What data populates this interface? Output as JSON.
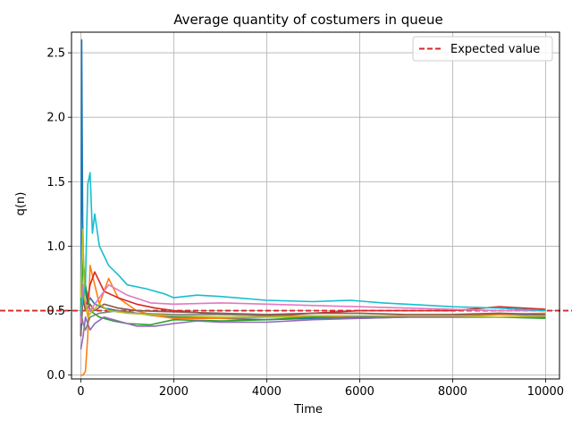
{
  "chart_data": {
    "type": "line",
    "title": "Average quantity of costumers in queue",
    "xlabel": "Time",
    "ylabel": "q(n)",
    "xlim": [
      -200,
      10300
    ],
    "ylim": [
      -0.03,
      2.66
    ],
    "x_ticks": [
      0,
      2000,
      4000,
      6000,
      8000,
      10000
    ],
    "y_ticks": [
      0.0,
      0.5,
      1.0,
      1.5,
      2.0,
      2.5
    ],
    "grid": true,
    "legend_position": "upper right",
    "reference_line": {
      "name": "Expected value",
      "y": 0.5,
      "color": "#d62728",
      "style": "dashed"
    },
    "series": [
      {
        "color": "#1f77b4",
        "x": [
          0,
          20,
          40,
          60,
          100,
          150,
          200,
          300,
          500,
          800,
          1200,
          1600,
          2000,
          3000,
          4000,
          5000,
          6000,
          7000,
          8000,
          9000,
          10000
        ],
        "y": [
          0.3,
          2.6,
          1.2,
          0.85,
          0.65,
          0.55,
          0.6,
          0.55,
          0.52,
          0.5,
          0.48,
          0.46,
          0.45,
          0.44,
          0.43,
          0.44,
          0.45,
          0.45,
          0.46,
          0.47,
          0.47
        ]
      },
      {
        "color": "#ff7f0e",
        "x": [
          0,
          50,
          100,
          150,
          200,
          300,
          400,
          600,
          800,
          1200,
          1600,
          2000,
          3000,
          4000,
          5000,
          6000,
          7000,
          8000,
          9000,
          10000
        ],
        "y": [
          0.0,
          0.0,
          0.03,
          0.3,
          0.85,
          0.7,
          0.55,
          0.75,
          0.6,
          0.5,
          0.46,
          0.44,
          0.44,
          0.45,
          0.45,
          0.46,
          0.46,
          0.47,
          0.47,
          0.48
        ]
      },
      {
        "color": "#2ca02c",
        "x": [
          0,
          50,
          100,
          200,
          400,
          700,
          1000,
          1500,
          2000,
          3000,
          4000,
          5000,
          6000,
          7000,
          8000,
          9000,
          10000
        ],
        "y": [
          0.5,
          0.9,
          0.7,
          0.5,
          0.45,
          0.42,
          0.4,
          0.39,
          0.43,
          0.42,
          0.43,
          0.45,
          0.44,
          0.45,
          0.45,
          0.45,
          0.44
        ]
      },
      {
        "color": "#d62728",
        "x": [
          0,
          50,
          100,
          200,
          300,
          500,
          800,
          1200,
          1600,
          2000,
          3000,
          4000,
          5000,
          6000,
          7000,
          8000,
          9000,
          10000
        ],
        "y": [
          0.4,
          0.6,
          0.5,
          0.7,
          0.8,
          0.65,
          0.6,
          0.55,
          0.52,
          0.5,
          0.47,
          0.46,
          0.48,
          0.5,
          0.5,
          0.5,
          0.53,
          0.51
        ]
      },
      {
        "color": "#9467bd",
        "x": [
          0,
          50,
          100,
          200,
          300,
          500,
          800,
          1200,
          1600,
          2000,
          2500,
          3000,
          4000,
          5000,
          6000,
          7000,
          8000,
          9000,
          10000
        ],
        "y": [
          0.2,
          0.3,
          0.45,
          0.35,
          0.4,
          0.45,
          0.42,
          0.38,
          0.38,
          0.4,
          0.42,
          0.41,
          0.41,
          0.43,
          0.44,
          0.45,
          0.45,
          0.45,
          0.46
        ]
      },
      {
        "color": "#8c564b",
        "x": [
          0,
          50,
          100,
          200,
          300,
          500,
          800,
          1200,
          2000,
          3000,
          4000,
          5000,
          6000,
          7000,
          8000,
          9000,
          10000
        ],
        "y": [
          0.3,
          0.6,
          0.5,
          0.55,
          0.5,
          0.55,
          0.52,
          0.5,
          0.49,
          0.48,
          0.47,
          0.48,
          0.48,
          0.47,
          0.47,
          0.48,
          0.47
        ]
      },
      {
        "color": "#e377c2",
        "x": [
          0,
          50,
          100,
          200,
          400,
          600,
          1000,
          1500,
          2000,
          3000,
          4000,
          5000,
          6000,
          7000,
          8000,
          9000,
          10000
        ],
        "y": [
          0.4,
          0.7,
          0.55,
          0.5,
          0.6,
          0.7,
          0.62,
          0.56,
          0.55,
          0.56,
          0.55,
          0.54,
          0.53,
          0.52,
          0.51,
          0.5,
          0.5
        ]
      },
      {
        "color": "#7f7f7f",
        "x": [
          0,
          50,
          100,
          200,
          400,
          800,
          1200,
          2000,
          3000,
          4000,
          5000,
          6000,
          7000,
          8000,
          9000,
          10000
        ],
        "y": [
          0.5,
          0.4,
          0.35,
          0.45,
          0.48,
          0.5,
          0.48,
          0.47,
          0.47,
          0.46,
          0.46,
          0.46,
          0.46,
          0.46,
          0.45,
          0.45
        ]
      },
      {
        "color": "#bcbd22",
        "x": [
          0,
          40,
          80,
          150,
          250,
          400,
          600,
          1000,
          1500,
          2000,
          3000,
          4000,
          5000,
          6000,
          7000,
          8000,
          9000,
          10000
        ],
        "y": [
          0.6,
          1.13,
          0.6,
          0.45,
          0.5,
          0.55,
          0.5,
          0.48,
          0.47,
          0.46,
          0.45,
          0.45,
          0.46,
          0.46,
          0.46,
          0.46,
          0.45,
          0.46
        ]
      },
      {
        "color": "#17becf",
        "x": [
          0,
          100,
          150,
          200,
          250,
          300,
          400,
          600,
          800,
          1000,
          1400,
          1800,
          2000,
          2500,
          3000,
          4000,
          5000,
          5800,
          6500,
          7000,
          8000,
          9000,
          10000
        ],
        "y": [
          0.5,
          0.7,
          1.48,
          1.57,
          1.1,
          1.25,
          1.0,
          0.85,
          0.78,
          0.7,
          0.67,
          0.63,
          0.6,
          0.62,
          0.61,
          0.58,
          0.57,
          0.58,
          0.56,
          0.55,
          0.53,
          0.52,
          0.5
        ]
      }
    ]
  }
}
